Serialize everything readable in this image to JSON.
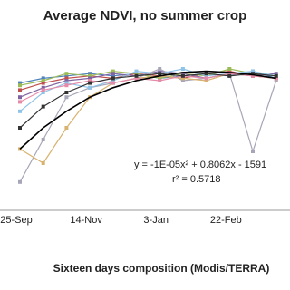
{
  "chart_data": {
    "type": "line",
    "title": "Average NDVI, no summer crop",
    "x_label": "Sixteen days composition (Modis/TERRA)",
    "categories": [
      "25-Sep",
      null,
      null,
      "14-Nov",
      null,
      null,
      "3-Jan",
      null,
      null,
      "22-Feb",
      null,
      null
    ],
    "ylim": [
      0.2,
      0.9
    ],
    "series": [
      {
        "color": "#4f81bd",
        "markers": true,
        "values": [
          0.74,
          0.76,
          0.77,
          0.78,
          0.77,
          0.78,
          0.76,
          0.77,
          0.78,
          0.77,
          0.79,
          0.76
        ]
      },
      {
        "color": "#c0504d",
        "markers": true,
        "values": [
          0.71,
          0.74,
          0.76,
          0.77,
          0.76,
          0.78,
          0.77,
          0.76,
          0.78,
          0.79,
          0.77,
          0.76
        ]
      },
      {
        "color": "#9bbb59",
        "markers": true,
        "values": [
          0.73,
          0.75,
          0.78,
          0.77,
          0.79,
          0.78,
          0.76,
          0.78,
          0.77,
          0.8,
          0.78,
          0.77
        ]
      },
      {
        "color": "#8064a2",
        "markers": true,
        "values": [
          0.68,
          0.72,
          0.75,
          0.76,
          0.78,
          0.77,
          0.79,
          0.78,
          0.76,
          0.78,
          0.77,
          0.78
        ]
      },
      {
        "color": "#a6a6b8",
        "markers": true,
        "values": [
          0.32,
          0.5,
          0.68,
          0.72,
          0.74,
          0.76,
          0.8,
          0.75,
          0.76,
          0.78,
          0.45,
          0.75
        ]
      },
      {
        "color": "#d9b26f",
        "markers": true,
        "values": [
          0.46,
          0.4,
          0.55,
          0.68,
          0.74,
          0.76,
          0.77,
          0.76,
          0.75,
          0.78,
          0.77,
          0.76
        ]
      },
      {
        "color": "#8fc3e8",
        "markers": true,
        "values": [
          0.62,
          0.7,
          0.74,
          0.72,
          0.75,
          0.79,
          0.78,
          0.8,
          0.77,
          0.78,
          0.79,
          0.77
        ]
      },
      {
        "color": "#e58aa8",
        "markers": true,
        "values": [
          0.66,
          0.71,
          0.73,
          0.75,
          0.74,
          0.76,
          0.75,
          0.77,
          0.76,
          0.78,
          0.77,
          0.76
        ]
      },
      {
        "color": "#333333",
        "markers": true,
        "values": [
          0.55,
          0.64,
          0.7,
          0.74,
          0.76,
          0.77,
          0.78,
          0.77,
          0.78,
          0.77,
          0.78,
          0.77
        ]
      },
      {
        "color": "#000000",
        "markers": false,
        "values": [
          0.46,
          0.55,
          0.62,
          0.68,
          0.72,
          0.75,
          0.77,
          0.785,
          0.79,
          0.785,
          0.775,
          0.76
        ]
      }
    ],
    "annotations": [
      "y = -1E-05x² + 0.8062x - 1591",
      "r² = 0.5718"
    ]
  }
}
